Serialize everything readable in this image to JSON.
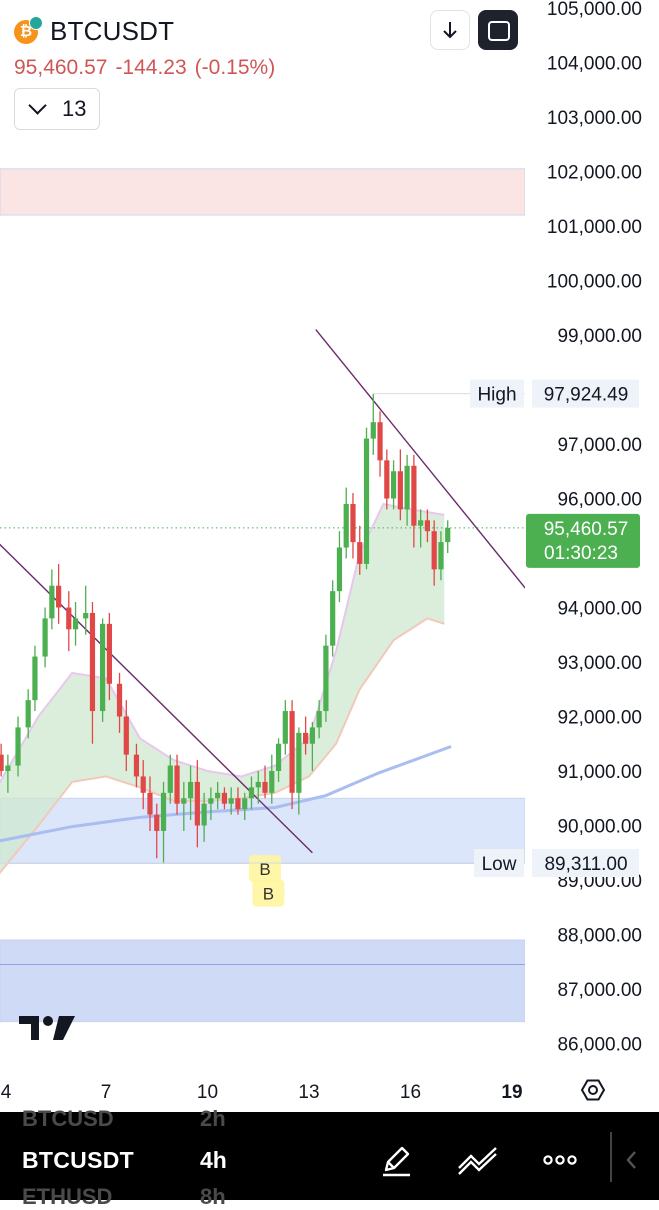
{
  "header": {
    "symbol": "BTCUSDT",
    "coin_glyph": "₿",
    "last_price": "95,460.57",
    "change": "-144.23",
    "change_pct": "(-0.15%)",
    "indicator_count": "13",
    "down_color": "#d05656"
  },
  "toolbar": {
    "download_icon": "arrow-down-icon",
    "fullscreen_icon": "fullscreen-icon"
  },
  "chart_data": {
    "type": "candlestick",
    "price_axis": {
      "labels": [
        "105,000.00",
        "104,000.00",
        "103,000.00",
        "102,000.00",
        "101,000.00",
        "100,000.00",
        "99,000.00",
        "97,000.00",
        "96,000.00",
        "94,000.00",
        "93,000.00",
        "92,000.00",
        "91,000.00",
        "90,000.00",
        "89,000.00",
        "88,000.00",
        "87,000.00",
        "86,000.00"
      ],
      "values": [
        105000,
        104000,
        103000,
        102000,
        101000,
        100000,
        99000,
        97000,
        96000,
        94000,
        93000,
        92000,
        91000,
        90000,
        89000,
        88000,
        87000,
        86000
      ]
    },
    "time_axis": {
      "labels": [
        "4",
        "7",
        "10",
        "13",
        "16",
        "19"
      ],
      "values": [
        4,
        7,
        10,
        13,
        16,
        19
      ]
    },
    "markers": {
      "high_label": "High",
      "high_value": "97,924.49",
      "high": 97924.49,
      "low_label": "Low",
      "low_value": "89,311.00",
      "low": 89311,
      "last_value": "95,460.57",
      "last": 95460.57,
      "countdown": "01:30:23"
    },
    "zones": [
      {
        "from": 101200,
        "to": 102050,
        "color": "#fbe4e4"
      },
      {
        "from": 89300,
        "to": 90500,
        "color": "#dbe6fb"
      },
      {
        "from": 86400,
        "to": 87900,
        "color": "#cfdaf7"
      }
    ],
    "trendlines": [
      {
        "x1": 3.3,
        "y1": 95500,
        "x2": 13.1,
        "y2": 89500
      },
      {
        "x1": 13.2,
        "y1": 99100,
        "x2": 19.4,
        "y2": 94350
      }
    ],
    "ma_slow": [
      [
        3.3,
        89650
      ],
      [
        6,
        89980
      ],
      [
        8,
        90150
      ],
      [
        10,
        90250
      ],
      [
        12,
        90330
      ],
      [
        13.5,
        90550
      ],
      [
        15,
        90950
      ],
      [
        17.2,
        91450
      ]
    ],
    "band_upper": [
      [
        3.3,
        90200
      ],
      [
        5,
        92000
      ],
      [
        6,
        92800
      ],
      [
        7,
        92700
      ],
      [
        8,
        91600
      ],
      [
        9,
        91200
      ],
      [
        10,
        91000
      ],
      [
        11,
        90900
      ],
      [
        12,
        91100
      ],
      [
        13,
        91600
      ],
      [
        13.8,
        93200
      ],
      [
        14.5,
        95000
      ],
      [
        15.2,
        95900
      ],
      [
        16,
        95800
      ],
      [
        17,
        95700
      ]
    ],
    "band_lower": [
      [
        3.3,
        88700
      ],
      [
        5,
        90000
      ],
      [
        6,
        90800
      ],
      [
        7,
        90900
      ],
      [
        8,
        90700
      ],
      [
        9,
        90450
      ],
      [
        10,
        90450
      ],
      [
        11,
        90500
      ],
      [
        12,
        90600
      ],
      [
        13,
        90900
      ],
      [
        13.8,
        91500
      ],
      [
        14.5,
        92500
      ],
      [
        15.5,
        93400
      ],
      [
        16.5,
        93800
      ],
      [
        17,
        93700
      ]
    ],
    "candles": [
      [
        3.4,
        90500,
        90900,
        90200,
        90800
      ],
      [
        3.6,
        90800,
        91400,
        90700,
        91300
      ],
      [
        3.9,
        91300,
        91500,
        90900,
        91000
      ],
      [
        4.1,
        91000,
        91300,
        90600,
        91100
      ],
      [
        4.4,
        91100,
        92000,
        90900,
        91800
      ],
      [
        4.7,
        91800,
        92500,
        91600,
        92300
      ],
      [
        4.9,
        92300,
        93300,
        92100,
        93100
      ],
      [
        5.2,
        93100,
        94000,
        92900,
        93800
      ],
      [
        5.4,
        93800,
        94700,
        93600,
        94400
      ],
      [
        5.6,
        94400,
        94800,
        93700,
        94000
      ],
      [
        5.9,
        94000,
        94300,
        93200,
        93600
      ],
      [
        6.1,
        93600,
        94100,
        93300,
        93800
      ],
      [
        6.4,
        93800,
        94400,
        93500,
        93900
      ],
      [
        6.6,
        93900,
        94100,
        91500,
        92100
      ],
      [
        6.9,
        92100,
        93800,
        91900,
        93700
      ],
      [
        7.1,
        93700,
        93900,
        92300,
        92600
      ],
      [
        7.4,
        92600,
        92800,
        91700,
        92000
      ],
      [
        7.6,
        92000,
        92300,
        91000,
        91300
      ],
      [
        7.9,
        91300,
        91500,
        90700,
        90900
      ],
      [
        8.1,
        90900,
        91200,
        90300,
        90600
      ],
      [
        8.3,
        90600,
        90900,
        89900,
        90200
      ],
      [
        8.5,
        90200,
        90400,
        89400,
        89900
      ],
      [
        8.7,
        89900,
        90800,
        89300,
        90600
      ],
      [
        8.9,
        90600,
        91300,
        90400,
        91100
      ],
      [
        9.1,
        91100,
        91300,
        90200,
        90400
      ],
      [
        9.3,
        90400,
        90800,
        89900,
        90500
      ],
      [
        9.5,
        90500,
        91100,
        90100,
        90800
      ],
      [
        9.7,
        90800,
        91200,
        89600,
        90000
      ],
      [
        9.9,
        90000,
        90600,
        89700,
        90400
      ],
      [
        10.1,
        90400,
        90700,
        90100,
        90500
      ],
      [
        10.3,
        90500,
        90800,
        90300,
        90600
      ],
      [
        10.5,
        90600,
        90700,
        90300,
        90400
      ],
      [
        10.7,
        90400,
        90700,
        90200,
        90500
      ],
      [
        10.9,
        90500,
        90700,
        90200,
        90300
      ],
      [
        11.1,
        90300,
        90600,
        90100,
        90500
      ],
      [
        11.3,
        90500,
        90900,
        90300,
        90700
      ],
      [
        11.5,
        90700,
        91000,
        90400,
        90800
      ],
      [
        11.7,
        90800,
        91100,
        90500,
        90600
      ],
      [
        11.9,
        90600,
        91300,
        90400,
        91000
      ],
      [
        12.1,
        91000,
        91600,
        90800,
        91500
      ],
      [
        12.3,
        91500,
        92300,
        91300,
        92100
      ],
      [
        12.5,
        92100,
        92300,
        90300,
        90600
      ],
      [
        12.7,
        90600,
        91800,
        90200,
        91700
      ],
      [
        12.9,
        91700,
        92000,
        91300,
        91500
      ],
      [
        13.1,
        91500,
        91900,
        91000,
        91800
      ],
      [
        13.3,
        91800,
        92300,
        91600,
        92100
      ],
      [
        13.5,
        92100,
        93500,
        91900,
        93300
      ],
      [
        13.7,
        93300,
        94500,
        93100,
        94300
      ],
      [
        13.9,
        94300,
        95400,
        94100,
        95100
      ],
      [
        14.1,
        95100,
        96200,
        94900,
        95900
      ],
      [
        14.3,
        95900,
        96100,
        94900,
        95200
      ],
      [
        14.5,
        95200,
        95500,
        94600,
        94800
      ],
      [
        14.7,
        94800,
        97300,
        94700,
        97100
      ],
      [
        14.9,
        97100,
        97924,
        96800,
        97400
      ],
      [
        15.1,
        97400,
        97600,
        96400,
        96700
      ],
      [
        15.3,
        96700,
        96900,
        95800,
        96000
      ],
      [
        15.5,
        96000,
        96700,
        95800,
        96500
      ],
      [
        15.7,
        96500,
        96900,
        95600,
        95800
      ],
      [
        15.9,
        95800,
        96800,
        95500,
        96600
      ],
      [
        16.1,
        96600,
        96800,
        95100,
        95500
      ],
      [
        16.3,
        95500,
        95800,
        95100,
        95600
      ],
      [
        16.5,
        95600,
        95800,
        95200,
        95400
      ],
      [
        16.7,
        95400,
        95600,
        94400,
        94700
      ],
      [
        16.9,
        94700,
        95400,
        94500,
        95200
      ],
      [
        17.1,
        95200,
        95600,
        95000,
        95460
      ]
    ],
    "buy_markers": [
      {
        "label": "B",
        "x": 11.7,
        "y": 89200
      },
      {
        "label": "B",
        "x": 11.8,
        "y": 88750
      }
    ]
  },
  "footer": {
    "prev_symbol": "BTCUSD",
    "prev_timeframe": "2h",
    "symbol": "BTCUSDT",
    "timeframe": "4h",
    "next_symbol": "ETHUSD",
    "next_timeframe": "8h",
    "icons": [
      "pen-icon",
      "multi-line-icon",
      "more-icon"
    ]
  }
}
